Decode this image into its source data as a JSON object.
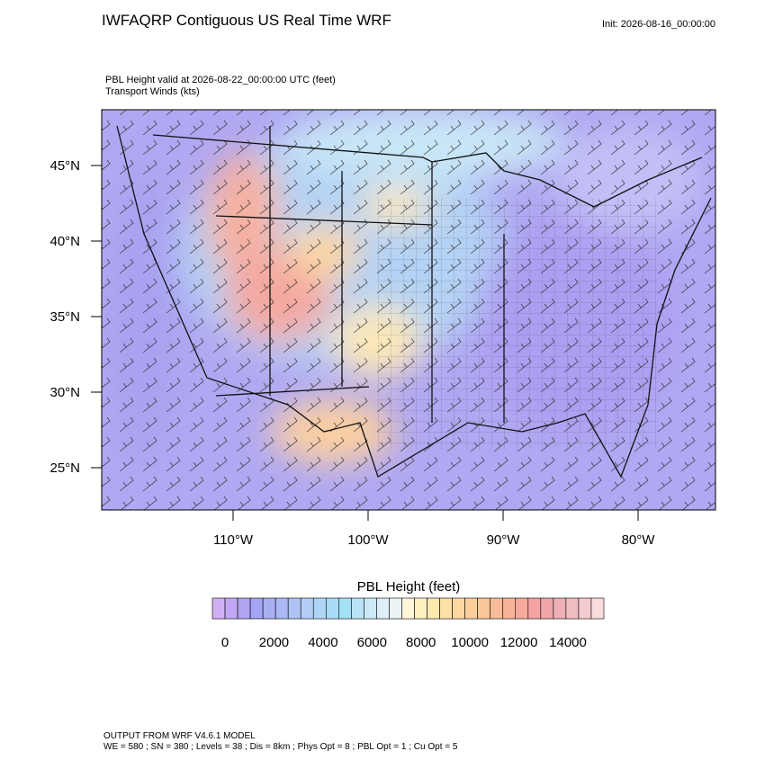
{
  "header": {
    "title": "IWFAQRP Contiguous US Real Time WRF",
    "init": "Init: 2026-08-16_00:00:00"
  },
  "map": {
    "field_line": "PBL Height valid at 2026-08-22_00:00:00 UTC   (feet)",
    "wind_line": "Transport Winds   (kts)",
    "lat_labels": [
      "45°N",
      "40°N",
      "35°N",
      "30°N",
      "25°N"
    ],
    "lon_labels": [
      "110°W",
      "100°W",
      "90°W",
      "80°W"
    ]
  },
  "colorbar": {
    "title": "PBL Height  (feet)",
    "labels": [
      0,
      2000,
      4000,
      6000,
      8000,
      10000,
      12000,
      14000
    ],
    "colors": [
      "#d2b0f5",
      "#c0a8f5",
      "#b0a4f3",
      "#a4a4f2",
      "#a8b0f2",
      "#aab8f4",
      "#aec2f5",
      "#b4cdf6",
      "#b0d6f7",
      "#a8dcf6",
      "#a4e0f6",
      "#b8e4f6",
      "#cbeaf6",
      "#dcf0f6",
      "#eaf4f6",
      "#fff6d8",
      "#fdefc0",
      "#fde8b0",
      "#fde0a8",
      "#fcd8a0",
      "#fccf9a",
      "#fbc698",
      "#f9bc98",
      "#f7b49a",
      "#f5aa9c",
      "#f4a2a2",
      "#f0a4a8",
      "#eeb0b6",
      "#f0bec2",
      "#f4ccd0",
      "#f8dcdc"
    ]
  },
  "footer": {
    "line1": "OUTPUT FROM WRF V4.6.1 MODEL",
    "line2": "WE = 580 ; SN = 380 ; Levels = 38 ; Dis = 8km ; Phys Opt = 8 ; PBL Opt = 1 ; Cu Opt = 5"
  }
}
